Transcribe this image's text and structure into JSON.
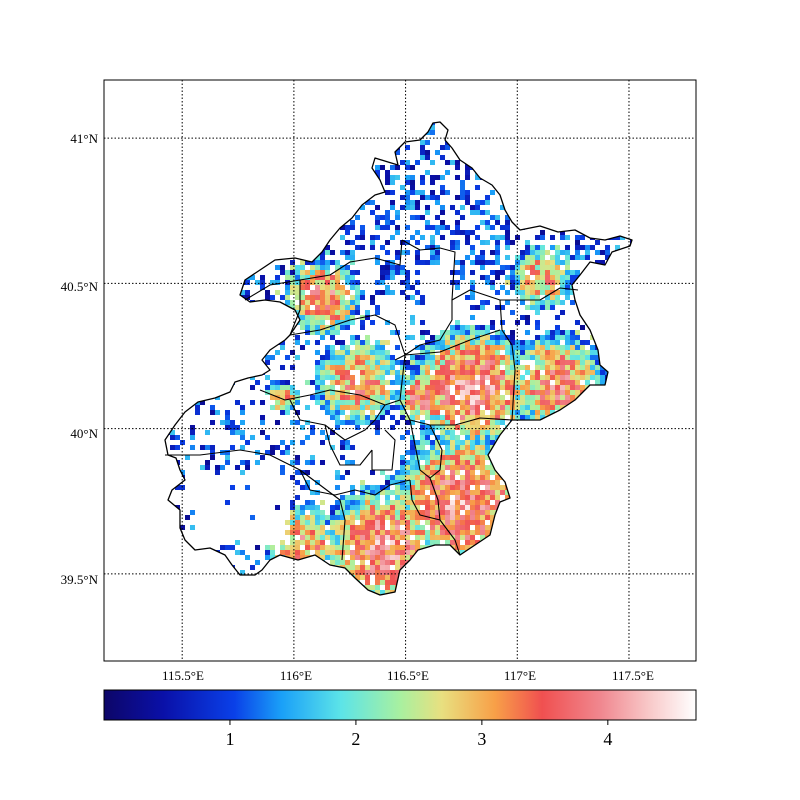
{
  "map": {
    "projection": "plate-carree",
    "extent": {
      "lon": [
        115.15,
        117.8
      ],
      "lat": [
        39.2,
        41.2
      ]
    },
    "gridlines": {
      "lon": [
        115.5,
        116.0,
        116.5,
        117.0,
        117.5
      ],
      "lat": [
        39.5,
        40.0,
        40.5,
        41.0
      ],
      "style": "dotted"
    },
    "lon_tick_labels": [
      "115.5°E",
      "116°E",
      "116.5°E",
      "117°E",
      "117.5°E"
    ],
    "lat_tick_labels": [
      "39.5°N",
      "40°N",
      "40.5°N",
      "41°N"
    ],
    "field": {
      "type": "gridded-heatmap",
      "cell_size_deg": 0.02,
      "range": [
        0,
        4.7
      ],
      "missing": "white (no data)",
      "high_regions": [
        "southeast plain",
        "northeast plain",
        "west basin"
      ],
      "low_regions": [
        "northern mountains",
        "western mountains"
      ]
    }
  },
  "colorbar": {
    "orientation": "horizontal",
    "colormap": "gist_ncar-like (navy → blue → cyan → green → yellow → orange → red → pink → white)",
    "vmin": 0.0,
    "vmax": 4.7,
    "ticks": [
      1,
      2,
      3,
      4
    ],
    "tick_labels": [
      "1",
      "2",
      "3",
      "4"
    ]
  }
}
